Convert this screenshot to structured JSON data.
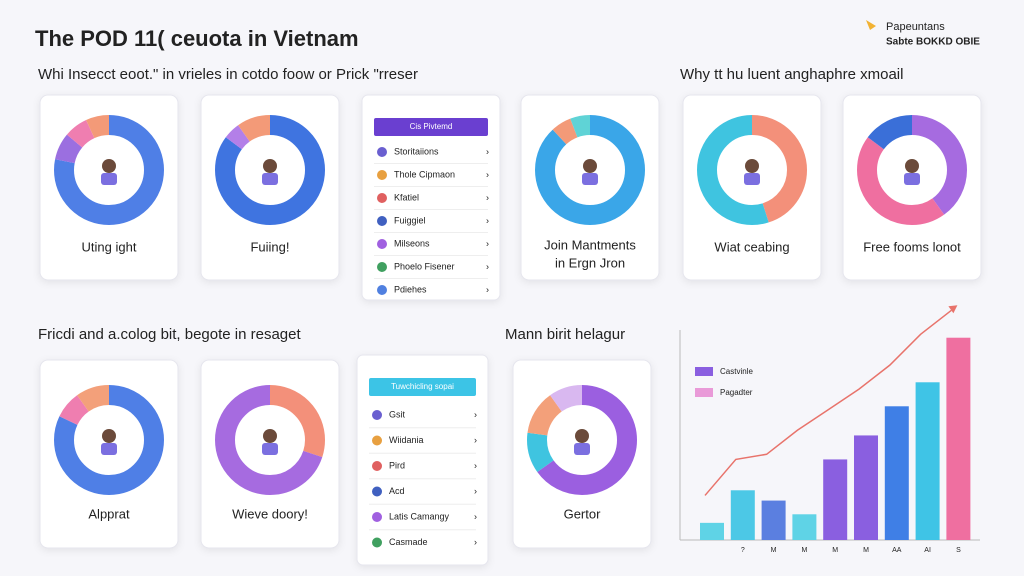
{
  "header": {
    "title": "The POD 11( ceuota in Vietnam",
    "brand": "Papeuntans",
    "brand_sub": "Sabte BOKKD OBIE"
  },
  "sections": [
    {
      "text": "Whi Insecct eoot.\" in vrieles in cotdo foow or Prick \"rreser"
    },
    {
      "text": "Why tt hu luent anghaphre xmoail"
    },
    {
      "text": "Fricdi and a.colog bit, begote in resaget"
    },
    {
      "text": "Mann birit helagur"
    }
  ],
  "donuts": [
    {
      "label": "Uting ight",
      "segments": [
        {
          "value": 78,
          "color": "#4f7fe6"
        },
        {
          "value": 8,
          "color": "#9b6fe0"
        },
        {
          "value": 7,
          "color": "#ef7eb0"
        },
        {
          "value": 7,
          "color": "#f39a78"
        }
      ]
    },
    {
      "label": "Fuiing!",
      "segments": [
        {
          "value": 85,
          "color": "#3f74e0"
        },
        {
          "value": 5,
          "color": "#b37fe8"
        },
        {
          "value": 10,
          "color": "#f39a78"
        }
      ]
    },
    {
      "label": "Join Mantments",
      "label2": "in Ergn Jron",
      "segments": [
        {
          "value": 88,
          "color": "#3aa6e8"
        },
        {
          "value": 6,
          "color": "#f39a78"
        },
        {
          "value": 6,
          "color": "#5fd3d6"
        }
      ]
    },
    {
      "label": "Wiat ceabing",
      "segments": [
        {
          "value": 45,
          "color": "#f3907a"
        },
        {
          "value": 55,
          "color": "#3fc4e0"
        }
      ]
    },
    {
      "label": "Free fooms lonot",
      "segments": [
        {
          "value": 40,
          "color": "#a66be0"
        },
        {
          "value": 45,
          "color": "#ef6fa0"
        },
        {
          "value": 15,
          "color": "#3a6fd8"
        }
      ]
    },
    {
      "label": "Alpprat",
      "segments": [
        {
          "value": 82,
          "color": "#4f7fe6"
        },
        {
          "value": 8,
          "color": "#ef7eb0"
        },
        {
          "value": 10,
          "color": "#f3a07a"
        }
      ]
    },
    {
      "label": "Wieve doory!",
      "segments": [
        {
          "value": 30,
          "color": "#f3907a"
        },
        {
          "value": 70,
          "color": "#a66be0"
        }
      ]
    },
    {
      "label": "Gertor",
      "segments": [
        {
          "value": 65,
          "color": "#9b5fe0"
        },
        {
          "value": 12,
          "color": "#3fc4e0"
        },
        {
          "value": 13,
          "color": "#f3a07a"
        },
        {
          "value": 10,
          "color": "#d9b8f0"
        }
      ]
    }
  ],
  "lists": [
    {
      "header": "Cis Pivtemd",
      "color": "#6a3fd0",
      "items": [
        "Storitaiions",
        "Thole Cipmaon",
        "Kfatiel",
        "Fuiggiel",
        "Milseons",
        "Phoelo Fisener",
        "Pdiehes"
      ]
    },
    {
      "header": "Tuwchicling sopai",
      "color": "#3cc4e6",
      "items": [
        "Gsit",
        "Wiidania",
        "Pird",
        "Acd",
        "Latis Camangy",
        "Casmade"
      ]
    }
  ],
  "bar_chart": {
    "type": "bar",
    "categories": [
      null,
      "?",
      "M",
      "M",
      "M",
      "M",
      "AA",
      "AI",
      "S"
    ],
    "values": [
      10,
      29,
      23,
      15,
      47,
      61,
      78,
      92,
      118
    ],
    "colors": [
      "#5fd3e6",
      "#4cc8e6",
      "#5b7fe0",
      "#5fd3e6",
      "#8a5fe0",
      "#8a5fe0",
      "#3f7fe6",
      "#3fc4e6",
      "#ef6fa0"
    ],
    "line": {
      "values": [
        26,
        47,
        50,
        64,
        76,
        88,
        102,
        120,
        134
      ],
      "color": "#e8736b"
    },
    "legend": [
      {
        "name": "Castvinle",
        "color": "#8a5fe0"
      },
      {
        "name": "Pagadter",
        "color": "#e99ad8"
      }
    ],
    "ylim": [
      0,
      140
    ]
  }
}
